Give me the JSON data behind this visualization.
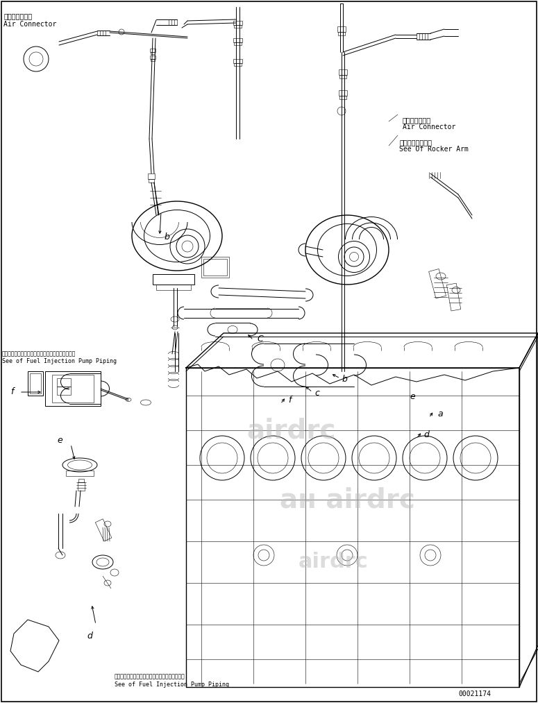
{
  "background_color": "#ffffff",
  "line_color": "#000000",
  "fig_width": 7.75,
  "fig_height": 10.13,
  "dpi": 100,
  "ann_top_left_jp": "エアーコネクタ",
  "ann_top_left_en": "Air Connector",
  "ann_top_right_jp": "エアーコネクタ",
  "ann_top_right_en": "Air Connector",
  "ann_rocker_jp": "ロッカアーム参照",
  "ann_rocker_en": "See Of Rocker Arm",
  "ann_fuel_left_jp": "フェエルインジェクションポンプパイピング参照＞",
  "ann_fuel_left_en": "See of Fuel Injection Pump Piping",
  "ann_fuel_bot_jp": "フェエルインジェクションポンプパイピング参照",
  "ann_fuel_bot_en": "See of Fuel Injection Pump Piping",
  "part_num": "00021174"
}
